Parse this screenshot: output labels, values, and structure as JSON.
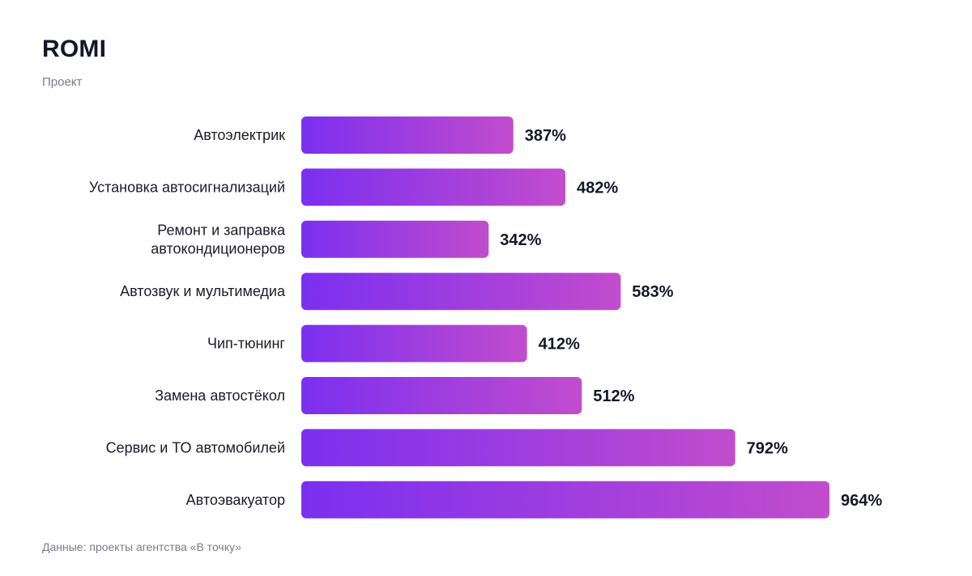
{
  "header": {
    "title": "ROMI",
    "subtitle": "Проект"
  },
  "footer": {
    "source": "Данные: проекты агентства «В точку»"
  },
  "colors": {
    "bar_start": "#7b2ff0",
    "bar_end": "#c24ccd"
  },
  "chart_data": {
    "type": "bar",
    "orientation": "horizontal",
    "title": "ROMI",
    "subtitle": "Проект",
    "unit": "%",
    "categories": [
      [
        "Автоэлектрик"
      ],
      [
        "Установка автосигнализаций"
      ],
      [
        "Ремонт и заправка",
        "автокондиционеров"
      ],
      [
        "Автозвук и мультимедиа"
      ],
      [
        "Чип-тюнинг"
      ],
      [
        "Замена автостёкол"
      ],
      [
        "Сервис и ТО автомобилей"
      ],
      [
        "Автоэвакуатор"
      ]
    ],
    "values": [
      387,
      482,
      342,
      583,
      412,
      512,
      792,
      964
    ],
    "value_labels": [
      "387%",
      "482%",
      "342%",
      "583%",
      "412%",
      "512%",
      "792%",
      "964%"
    ],
    "xlim": [
      0,
      964
    ],
    "grid": false,
    "legend": "none"
  }
}
